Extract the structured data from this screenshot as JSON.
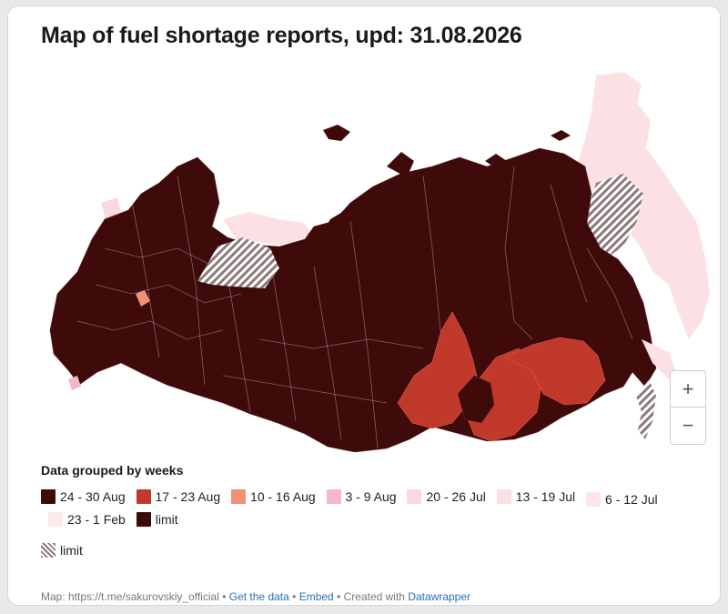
{
  "title": "Map of fuel shortage reports, upd: 31.08.2026",
  "legend": {
    "title": "Data grouped by weeks",
    "items": [
      {
        "label": "24 - 30 Aug",
        "color": "#3f0a0a"
      },
      {
        "label": "17 - 23 Aug",
        "color": "#c0392b"
      },
      {
        "label": "10 - 16 Aug",
        "color": "#f2907a"
      },
      {
        "label": "3 - 9 Aug",
        "color": "#f5b8c4"
      },
      {
        "label": "20 - 26 Jul",
        "color": "#fad9de"
      },
      {
        "label": "13 - 19 Jul",
        "color": "#fbe1e4"
      },
      {
        "label": "6 - 12 Jul",
        "color": "#fce5e8"
      },
      {
        "label": "23 - 1 Feb",
        "color": "#fde9ec"
      },
      {
        "label": "limit",
        "color": "#3f0a0a"
      }
    ],
    "hatch_label": "limit"
  },
  "zoom": {
    "in": "+",
    "out": "−"
  },
  "footer": {
    "source": "Map: https://t.me/sakurovskiy_official",
    "sep": "•",
    "get_data": "Get the data",
    "embed": "Embed",
    "created": "Created with",
    "datawrapper": "Datawrapper"
  },
  "colors": {
    "dark": "#3f0a0a",
    "red": "#c0392b",
    "orange": "#f2907a",
    "pink": "#f5b8c4",
    "light": "#fbe1e4",
    "hatch": "#8c7b7d"
  }
}
